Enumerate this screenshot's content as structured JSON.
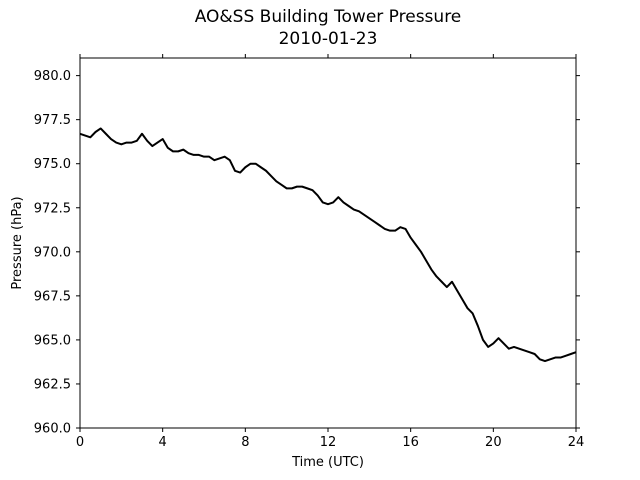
{
  "chart_data": {
    "type": "line",
    "title": "AO&SS Building Tower Pressure",
    "subtitle": "2010-01-23",
    "xlabel": "Time (UTC)",
    "ylabel": "Pressure (hPa)",
    "xlim": [
      0,
      24
    ],
    "ylim": [
      960.0,
      981.0
    ],
    "xticks": [
      0,
      4,
      8,
      12,
      16,
      20,
      24
    ],
    "xtick_labels": [
      "0",
      "4",
      "8",
      "12",
      "16",
      "20",
      "24"
    ],
    "yticks": [
      960.0,
      962.5,
      965.0,
      967.5,
      970.0,
      972.5,
      975.0,
      977.5,
      980.0
    ],
    "ytick_labels": [
      "960.0",
      "962.5",
      "965.0",
      "967.5",
      "970.0",
      "972.5",
      "975.0",
      "977.5",
      "980.0"
    ],
    "grid": false,
    "series": [
      {
        "color": "#000000",
        "x": [
          0,
          0.25,
          0.5,
          0.75,
          1.0,
          1.25,
          1.5,
          1.75,
          2.0,
          2.25,
          2.5,
          2.75,
          3.0,
          3.25,
          3.5,
          3.75,
          4.0,
          4.25,
          4.5,
          4.75,
          5.0,
          5.25,
          5.5,
          5.75,
          6.0,
          6.25,
          6.5,
          6.75,
          7.0,
          7.25,
          7.5,
          7.75,
          8.0,
          8.25,
          8.5,
          8.75,
          9.0,
          9.25,
          9.5,
          9.75,
          10.0,
          10.25,
          10.5,
          10.75,
          11.0,
          11.25,
          11.5,
          11.75,
          12.0,
          12.25,
          12.5,
          12.75,
          13.0,
          13.25,
          13.5,
          13.75,
          14.0,
          14.25,
          14.5,
          14.75,
          15.0,
          15.25,
          15.5,
          15.75,
          16.0,
          16.25,
          16.5,
          16.75,
          17.0,
          17.25,
          17.5,
          17.75,
          18.0,
          18.25,
          18.5,
          18.75,
          19.0,
          19.25,
          19.5,
          19.75,
          20.0,
          20.25,
          20.5,
          20.75,
          21.0,
          21.25,
          21.5,
          21.75,
          22.0,
          22.25,
          22.5,
          22.75,
          23.0,
          23.25,
          23.5,
          23.75,
          24.0
        ],
        "values": [
          976.7,
          976.6,
          976.5,
          976.8,
          977.0,
          976.7,
          976.4,
          976.2,
          976.1,
          976.2,
          976.2,
          976.3,
          976.7,
          976.3,
          976.0,
          976.2,
          976.4,
          975.9,
          975.7,
          975.7,
          975.8,
          975.6,
          975.5,
          975.5,
          975.4,
          975.4,
          975.2,
          975.3,
          975.4,
          975.2,
          974.6,
          974.5,
          974.8,
          975.0,
          975.0,
          974.8,
          974.6,
          974.3,
          974.0,
          973.8,
          973.6,
          973.6,
          973.7,
          973.7,
          973.6,
          973.5,
          973.2,
          972.8,
          972.7,
          972.8,
          973.1,
          972.8,
          972.6,
          972.4,
          972.3,
          972.1,
          971.9,
          971.7,
          971.5,
          971.3,
          971.2,
          971.2,
          971.4,
          971.3,
          970.8,
          970.4,
          970.0,
          969.5,
          969.0,
          968.6,
          968.3,
          968.0,
          968.3,
          967.8,
          967.3,
          966.8,
          966.5,
          965.8,
          965.0,
          964.6,
          964.8,
          965.1,
          964.8,
          964.5,
          964.6,
          964.5,
          964.4,
          964.3,
          964.2,
          963.9,
          963.8,
          963.9,
          964.0,
          964.0,
          964.1,
          964.2,
          964.3
        ]
      }
    ]
  }
}
